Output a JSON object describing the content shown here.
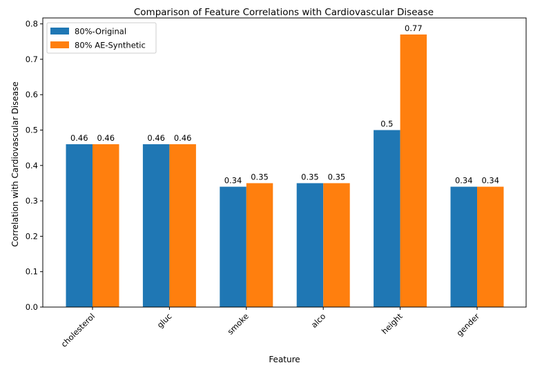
{
  "chart_data": {
    "type": "bar",
    "title": "Comparison of Feature Correlations with Cardiovascular Disease",
    "xlabel": "Feature",
    "ylabel": "Correlation with Cardiovascular Disease",
    "categories": [
      "cholesterol",
      "gluc",
      "smoke",
      "alco",
      "height",
      "gender"
    ],
    "series": [
      {
        "name": "80%-Original",
        "color": "#1f77b4",
        "values": [
          0.46,
          0.46,
          0.34,
          0.35,
          0.5,
          0.34
        ],
        "labels": [
          "0.46",
          "0.46",
          "0.34",
          "0.35",
          "0.5",
          "0.34"
        ]
      },
      {
        "name": "80% AE-Synthetic",
        "color": "#ff7f0e",
        "values": [
          0.46,
          0.46,
          0.35,
          0.35,
          0.77,
          0.34
        ],
        "labels": [
          "0.46",
          "0.46",
          "0.35",
          "0.35",
          "0.77",
          "0.34"
        ]
      }
    ],
    "ylim": [
      0,
      0.8
    ],
    "yticks": [
      "0.0",
      "0.1",
      "0.2",
      "0.3",
      "0.4",
      "0.5",
      "0.6",
      "0.7",
      "0.8"
    ],
    "grid": false,
    "legend_position": "top-left"
  }
}
